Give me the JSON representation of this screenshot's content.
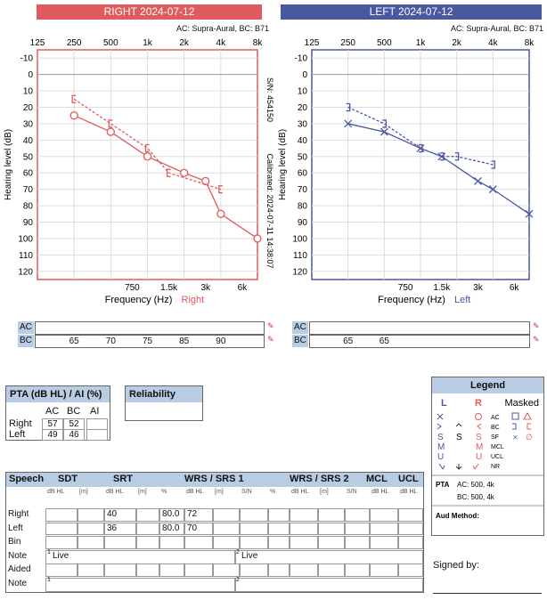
{
  "right_panel": {
    "title": "RIGHT  2024-07-12",
    "transducers": "AC: Supra-Aural, BC: B71",
    "serial": "S/N: 454150",
    "calibrated": "Calibrated: 2024-07-11 14:38:07",
    "freq_label": "Frequency (Hz)",
    "ear_label": "Right",
    "ear_color": "#e05a5e"
  },
  "left_panel": {
    "title": "LEFT  2024-07-12",
    "transducers": "AC: Supra-Aural, BC: B71",
    "freq_label": "Frequency (Hz)",
    "ear_label": "Left",
    "ear_color": "#4a58a0"
  },
  "ylabel": "Hearing level (dB)",
  "freq_top_ticks": [
    "125",
    "250",
    "500",
    "1k",
    "2k",
    "4k",
    "8k"
  ],
  "freq_bottom_ticks": [
    "750",
    "1.5k",
    "3k",
    "6k"
  ],
  "db_ticks": [
    "-10",
    "0",
    "10",
    "20",
    "30",
    "40",
    "50",
    "60",
    "70",
    "80",
    "90",
    "100",
    "110",
    "120"
  ],
  "chart_data": [
    {
      "type": "line",
      "title": "RIGHT  2024-07-12",
      "xlabel": "Frequency (Hz)",
      "ylabel": "Hearing level (dB)",
      "x_scale": "log",
      "y_inverted": true,
      "ylim": [
        -15,
        125
      ],
      "series": [
        {
          "name": "AC",
          "symbol": "circle",
          "color": "#e05a5e",
          "x": [
            250,
            500,
            1000,
            2000,
            3000,
            4000,
            8000
          ],
          "y": [
            25,
            35,
            50,
            60,
            65,
            85,
            100
          ]
        },
        {
          "name": "BC",
          "symbol": "bracket",
          "color": "#e05a5e",
          "x": [
            250,
            500,
            1000,
            1500,
            4000
          ],
          "y": [
            15,
            30,
            45,
            60,
            70
          ]
        }
      ]
    },
    {
      "type": "line",
      "title": "LEFT  2024-07-12",
      "xlabel": "Frequency (Hz)",
      "ylabel": "Hearing level (dB)",
      "x_scale": "log",
      "y_inverted": true,
      "ylim": [
        -15,
        125
      ],
      "series": [
        {
          "name": "AC",
          "symbol": "x",
          "color": "#4a58a0",
          "x": [
            250,
            500,
            1000,
            1500,
            3000,
            4000,
            8000
          ],
          "y": [
            30,
            35,
            45,
            50,
            65,
            70,
            85
          ]
        },
        {
          "name": "BC",
          "symbol": "bracket",
          "color": "#4a58a0",
          "x": [
            250,
            500,
            1000,
            1500,
            2000,
            4000
          ],
          "y": [
            20,
            30,
            45,
            50,
            50,
            55
          ]
        }
      ]
    }
  ],
  "right_ac_bc": {
    "ac_label": "AC",
    "bc_label": "BC",
    "bc_values": [
      {
        "f": 250,
        "v": "65"
      },
      {
        "f": 500,
        "v": "70"
      },
      {
        "f": 1000,
        "v": "75"
      },
      {
        "f": 2000,
        "v": "85"
      },
      {
        "f": 4000,
        "v": "90"
      }
    ]
  },
  "left_ac_bc": {
    "ac_label": "AC",
    "bc_label": "BC",
    "bc_values": [
      {
        "f": 250,
        "v": "65"
      },
      {
        "f": 500,
        "v": "65"
      }
    ]
  },
  "pta": {
    "title": "PTA (dB HL) / AI (%)",
    "cols": [
      "AC",
      "BC",
      "AI"
    ],
    "rows": [
      {
        "label": "Right",
        "ac": "57",
        "bc": "52",
        "ai": ""
      },
      {
        "label": "Left",
        "ac": "49",
        "bc": "46",
        "ai": ""
      }
    ]
  },
  "reliability": {
    "title": "Reliability",
    "value": ""
  },
  "legend": {
    "title": "Legend",
    "L": "L",
    "R": "R",
    "masked": "Masked",
    "ac": "AC",
    "bc": "BC",
    "sf": "SF",
    "mcl": "MCL",
    "ucl": "UCL",
    "nr": "NR",
    "s": "S",
    "m": "M",
    "u": "U",
    "pta_label": "PTA",
    "pta_ac": "AC: 500, 4k",
    "pta_bc": "BC: 500, 4k",
    "aud_method": "Aud Method:"
  },
  "speech": {
    "headers": [
      "Speech",
      "SDT",
      "SRT",
      "WRS / SRS 1",
      "WRS / SRS 2",
      "MCL",
      "UCL"
    ],
    "sub": [
      "dB HL",
      "[m]",
      "dB HL",
      "[m]",
      "%",
      "dB HL",
      "[m]",
      "S/N",
      "%",
      "dB HL",
      "[m]",
      "S/N",
      "dB HL",
      "dB HL"
    ],
    "rows": [
      {
        "label": "Right",
        "srt": "40",
        "pct": "80.0",
        "wrs_db": "72"
      },
      {
        "label": "Left",
        "srt": "36",
        "pct": "80.0",
        "wrs_db": "70"
      },
      {
        "label": "Bin"
      },
      {
        "label": "Note",
        "n1": "1",
        "live1": "Live",
        "n2": "2",
        "live2": "Live"
      },
      {
        "label": "Aided"
      },
      {
        "label": "Note",
        "n1": "1",
        "n2": "2"
      }
    ]
  },
  "signed_by": "Signed by:"
}
